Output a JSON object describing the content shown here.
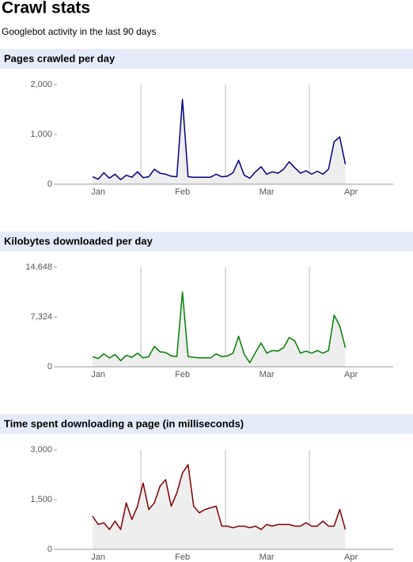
{
  "header": {
    "title": "Crawl stats",
    "subtitle": "Googlebot activity in the last 90 days"
  },
  "chart_data": [
    {
      "type": "line",
      "title": "Pages crawled per day",
      "color": "#000080",
      "categories": [
        null,
        "Jan",
        null,
        null,
        null,
        null,
        null,
        null,
        null,
        null,
        null,
        null,
        null,
        null,
        null,
        null,
        "Feb",
        null,
        null,
        null,
        null,
        null,
        null,
        null,
        null,
        null,
        null,
        null,
        null,
        null,
        null,
        "Mar",
        null,
        null,
        null,
        null,
        null,
        null,
        null,
        null,
        null,
        null,
        null,
        null,
        null,
        null,
        "Apr"
      ],
      "values": [
        150,
        100,
        230,
        120,
        200,
        90,
        180,
        140,
        250,
        130,
        150,
        300,
        220,
        200,
        160,
        150,
        1700,
        150,
        140,
        140,
        140,
        140,
        200,
        150,
        160,
        230,
        480,
        180,
        120,
        250,
        350,
        200,
        250,
        220,
        300,
        450,
        330,
        220,
        270,
        200,
        260,
        200,
        300,
        850,
        950,
        400,
        null
      ],
      "ylim": [
        0,
        2000
      ],
      "yticks": [
        0,
        {
          "value": 1000,
          "label": "1,000"
        },
        {
          "value": 2000,
          "label": "2,000"
        }
      ]
    },
    {
      "type": "line",
      "title": "Kilobytes downloaded per day",
      "color": "#008000",
      "categories": [
        null,
        "Jan",
        null,
        null,
        null,
        null,
        null,
        null,
        null,
        null,
        null,
        null,
        null,
        null,
        null,
        null,
        "Feb",
        null,
        null,
        null,
        null,
        null,
        null,
        null,
        null,
        null,
        null,
        null,
        null,
        null,
        null,
        "Mar",
        null,
        null,
        null,
        null,
        null,
        null,
        null,
        null,
        null,
        null,
        null,
        null,
        null,
        null,
        "Apr"
      ],
      "values": [
        1500,
        1200,
        1900,
        1300,
        1800,
        900,
        1700,
        1400,
        2000,
        1300,
        1500,
        3000,
        2200,
        2100,
        1600,
        1500,
        11000,
        1500,
        1400,
        1300,
        1300,
        1300,
        1900,
        1500,
        1600,
        2000,
        4500,
        1800,
        600,
        2100,
        3500,
        2000,
        2400,
        2300,
        2800,
        4300,
        3800,
        2000,
        2300,
        2000,
        2400,
        2000,
        2400,
        7600,
        6000,
        2800,
        null
      ],
      "ylim": [
        0,
        14648
      ],
      "yticks": [
        0,
        {
          "value": 7324,
          "label": "7,324"
        },
        {
          "value": 14648,
          "label": "14,648"
        }
      ]
    },
    {
      "type": "line",
      "title": "Time spent downloading a page (in milliseconds)",
      "color": "#800000",
      "categories": [
        null,
        "Jan",
        null,
        null,
        null,
        null,
        null,
        null,
        null,
        null,
        null,
        null,
        null,
        null,
        null,
        null,
        "Feb",
        null,
        null,
        null,
        null,
        null,
        null,
        null,
        null,
        null,
        null,
        null,
        null,
        null,
        null,
        "Mar",
        null,
        null,
        null,
        null,
        null,
        null,
        null,
        null,
        null,
        null,
        null,
        null,
        null,
        null,
        "Apr"
      ],
      "values": [
        1000,
        750,
        800,
        600,
        850,
        600,
        1400,
        900,
        1300,
        2000,
        1200,
        1400,
        1900,
        2100,
        1300,
        1700,
        2300,
        2550,
        1300,
        1100,
        1200,
        1250,
        1300,
        700,
        700,
        650,
        700,
        700,
        650,
        700,
        600,
        750,
        700,
        750,
        750,
        750,
        700,
        700,
        800,
        700,
        700,
        850,
        700,
        700,
        1200,
        600,
        null
      ],
      "ylim": [
        0,
        3000
      ],
      "yticks": [
        0,
        {
          "value": 1500,
          "label": "1,500"
        },
        {
          "value": 3000,
          "label": "3,000"
        }
      ]
    }
  ]
}
